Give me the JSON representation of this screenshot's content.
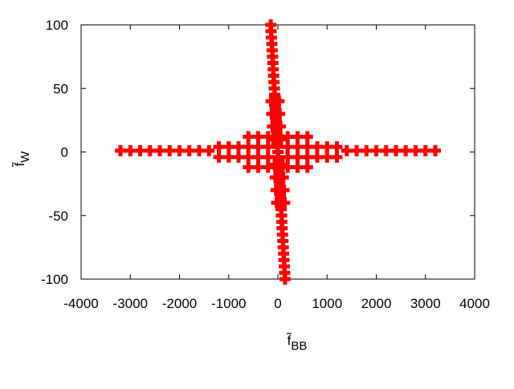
{
  "chart_data": {
    "type": "scatter",
    "xlabel": {
      "text": "f̃",
      "subscript": "BB"
    },
    "ylabel": {
      "text": "f̃",
      "subscript": "W"
    },
    "xlim": [
      -4000,
      4000
    ],
    "xticks": [
      -4000,
      -3000,
      -2000,
      -1000,
      0,
      1000,
      2000,
      3000,
      4000
    ],
    "ylim": [
      -100,
      100
    ],
    "yticks": [
      -100,
      -50,
      0,
      50,
      100
    ],
    "grid": false,
    "series": [
      {
        "color": "#ff0000",
        "x": [
          -3200,
          -3000,
          -2800,
          -2600,
          -2400,
          -2200,
          -2000,
          -1800,
          -1600,
          -1400,
          1400,
          1600,
          1800,
          2000,
          2200,
          2400,
          2600,
          2800,
          3000,
          3200,
          -1200,
          -1000,
          -800,
          -600,
          -400,
          -200,
          0,
          200,
          400,
          600,
          800,
          1000,
          1200,
          -1200,
          -1000,
          -800,
          -600,
          -400,
          -200,
          0,
          200,
          400,
          600,
          800,
          1000,
          1200,
          -600,
          -400,
          -200,
          0,
          200,
          400,
          600,
          -600,
          -400,
          -200,
          0,
          200,
          400,
          600,
          -145,
          -138,
          -131,
          -123,
          -116,
          -109,
          -102,
          -94,
          -87,
          -80,
          -73,
          -65,
          -58,
          -51,
          -44,
          -36,
          -29,
          -22,
          -15,
          -7,
          0,
          7,
          15,
          22,
          29,
          36,
          44,
          51,
          58,
          65,
          73,
          80,
          87,
          94,
          102,
          109,
          116,
          123,
          131,
          138,
          145,
          -138,
          22,
          -124,
          36,
          -109,
          51,
          -95,
          65,
          -65,
          95,
          -51,
          109,
          -36,
          124,
          -22,
          138
        ],
        "y": [
          1,
          1,
          1,
          1,
          1,
          1,
          1,
          1,
          1,
          1,
          1,
          1,
          1,
          1,
          1,
          1,
          1,
          1,
          1,
          1,
          4,
          4,
          4,
          4,
          4,
          4,
          4,
          4,
          4,
          4,
          4,
          4,
          4,
          -4,
          -4,
          -4,
          -4,
          -4,
          -4,
          -4,
          -4,
          -4,
          -4,
          -4,
          -4,
          -4,
          12,
          12,
          12,
          12,
          12,
          12,
          12,
          -12,
          -12,
          -12,
          -12,
          -12,
          -12,
          -12,
          100,
          95,
          90,
          85,
          80,
          75,
          70,
          65,
          60,
          55,
          50,
          45,
          40,
          35,
          30,
          25,
          20,
          15,
          10,
          5,
          0,
          -5,
          -10,
          -15,
          -20,
          -25,
          -30,
          -35,
          -40,
          -45,
          -50,
          -55,
          -60,
          -65,
          -70,
          -75,
          -80,
          -85,
          -90,
          -95,
          -100,
          40,
          40,
          30,
          30,
          20,
          20,
          10,
          10,
          -10,
          -10,
          -20,
          -20,
          -30,
          -30,
          -40,
          -40
        ]
      }
    ]
  }
}
